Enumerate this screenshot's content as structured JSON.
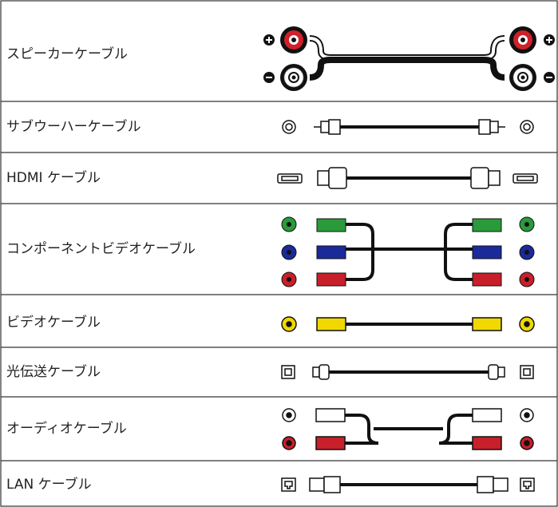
{
  "table": {
    "rows": [
      {
        "label": "スピーカーケーブル"
      },
      {
        "label": "サブウーハーケーブル"
      },
      {
        "label": "HDMI ケーブル"
      },
      {
        "label": "コンポーネントビデオケーブル"
      },
      {
        "label": "ビデオケーブル"
      },
      {
        "label": "光伝送ケーブル"
      },
      {
        "label": "オーディオケーブル"
      },
      {
        "label": "LAN ケーブル"
      }
    ]
  }
}
